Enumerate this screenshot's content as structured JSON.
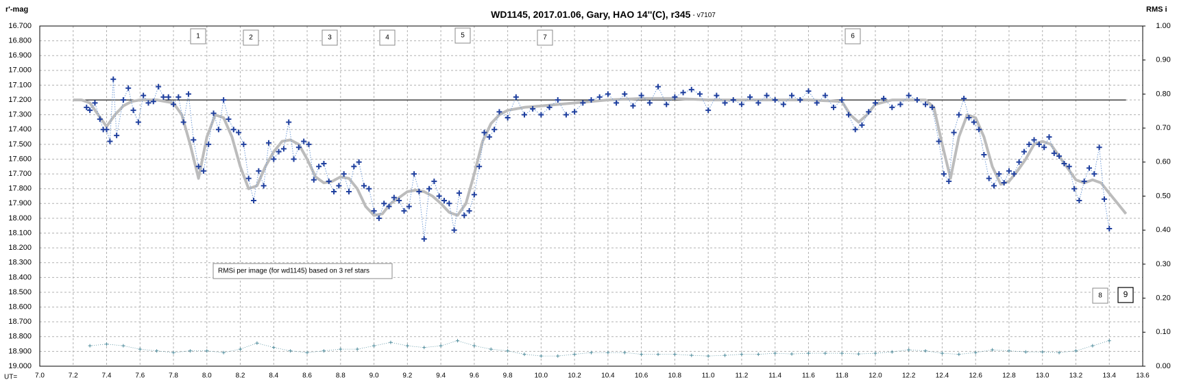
{
  "chart_data": {
    "type": "scatter",
    "title": "WD1145, 2017.01.06,  Gary, HAO 14''(C), r345",
    "subtitle": "- v7107",
    "ylabel": "r'-mag",
    "y2label": "RMS i",
    "xlabel": "UT=",
    "annotations": [
      "1",
      "2",
      "3",
      "4",
      "5",
      "7",
      "6",
      "8",
      "9",
      "RMSi per image (for wd1145) based on 3 ref stars"
    ],
    "xlim": [
      7.0,
      13.6
    ],
    "xticks": [
      {
        "value": 7,
        "label": "7.0"
      },
      7.2,
      7.4,
      7.6,
      7.8,
      {
        "value": 8,
        "label": "8.0"
      },
      8.2,
      8.4,
      8.6,
      8.8,
      {
        "value": 9,
        "label": "9.0"
      },
      9.2,
      9.4,
      9.6,
      9.8,
      {
        "value": 10,
        "label": "10.0"
      },
      10.2,
      10.4,
      10.6,
      10.8,
      {
        "value": 11,
        "label": "11.0"
      },
      11.2,
      11.4,
      11.6,
      11.8,
      {
        "value": 12,
        "label": "12.0"
      },
      12.2,
      12.4,
      12.6,
      12.8,
      {
        "value": 13,
        "label": "13.0"
      },
      13.2,
      13.4,
      13.6
    ],
    "ylim": [
      19.0,
      16.7
    ],
    "yticks": [
      {
        "value": 16.7,
        "label": "16.700"
      },
      {
        "value": 16.8,
        "label": "16.800"
      },
      {
        "value": 16.9,
        "label": "16.900"
      },
      {
        "value": 17.0,
        "label": "17.000"
      },
      {
        "value": 17.1,
        "label": "17.100"
      },
      {
        "value": 17.2,
        "label": "17.200"
      },
      {
        "value": 17.3,
        "label": "17.300"
      },
      {
        "value": 17.4,
        "label": "17.400"
      },
      {
        "value": 17.5,
        "label": "17.500"
      },
      {
        "value": 17.6,
        "label": "17.600"
      },
      {
        "value": 17.7,
        "label": "17.700"
      },
      {
        "value": 17.8,
        "label": "17.800"
      },
      {
        "value": 17.9,
        "label": "17.900"
      },
      {
        "value": 18.0,
        "label": "18.000"
      },
      {
        "value": 18.1,
        "label": "18.100"
      },
      {
        "value": 18.2,
        "label": "18.200"
      },
      {
        "value": 18.3,
        "label": "18.300"
      },
      {
        "value": 18.4,
        "label": "18.400"
      },
      {
        "value": 18.5,
        "label": "18.500"
      },
      {
        "value": 18.6,
        "label": "18.600"
      },
      {
        "value": 18.7,
        "label": "18.700"
      },
      {
        "value": 18.8,
        "label": "18.800"
      },
      {
        "value": 18.9,
        "label": "18.900"
      },
      {
        "value": 19.0,
        "label": "19.000"
      }
    ],
    "y2lim": [
      0,
      1
    ],
    "y2ticks": [
      {
        "value": 0,
        "label": "0.00"
      },
      {
        "value": 0.1,
        "label": "0.10"
      },
      {
        "value": 0.2,
        "label": "0.20"
      },
      {
        "value": 0.3,
        "label": "0.30"
      },
      {
        "value": 0.4,
        "label": "0.40"
      },
      {
        "value": 0.5,
        "label": "0.50"
      },
      {
        "value": 0.6,
        "label": "0.60"
      },
      {
        "value": 0.7,
        "label": "0.70"
      },
      {
        "value": 0.8,
        "label": "0.80"
      },
      {
        "value": 0.9,
        "label": "0.90"
      },
      {
        "value": 1,
        "label": "1.00"
      }
    ],
    "grid": true,
    "reference_line": {
      "y": 17.2,
      "x": [
        7.2,
        13.5
      ],
      "color": "#000000"
    },
    "series": [
      {
        "style": "markers",
        "color": "#1f3f9e",
        "connector_color": "#6f9ad6",
        "x": [
          7.28,
          7.3,
          7.33,
          7.36,
          7.38,
          7.4,
          7.42,
          7.44,
          7.46,
          7.5,
          7.53,
          7.56,
          7.59,
          7.62,
          7.65,
          7.68,
          7.71,
          7.74,
          7.77,
          7.8,
          7.83,
          7.86,
          7.89,
          7.92,
          7.95,
          7.98,
          8.01,
          8.04,
          8.07,
          8.1,
          8.13,
          8.16,
          8.19,
          8.22,
          8.25,
          8.28,
          8.31,
          8.34,
          8.37,
          8.4,
          8.43,
          8.46,
          8.49,
          8.52,
          8.55,
          8.58,
          8.61,
          8.64,
          8.67,
          8.7,
          8.73,
          8.76,
          8.79,
          8.82,
          8.85,
          8.88,
          8.91,
          8.94,
          8.97,
          9.0,
          9.03,
          9.06,
          9.09,
          9.12,
          9.15,
          9.18,
          9.21,
          9.24,
          9.27,
          9.3,
          9.33,
          9.36,
          9.39,
          9.42,
          9.45,
          9.48,
          9.51,
          9.54,
          9.57,
          9.6,
          9.63,
          9.66,
          9.69,
          9.72,
          9.75,
          9.8,
          9.85,
          9.9,
          9.95,
          10.0,
          10.05,
          10.1,
          10.15,
          10.2,
          10.25,
          10.3,
          10.35,
          10.4,
          10.45,
          10.5,
          10.55,
          10.6,
          10.65,
          10.7,
          10.75,
          10.8,
          10.85,
          10.9,
          10.95,
          11.0,
          11.05,
          11.1,
          11.15,
          11.2,
          11.25,
          11.3,
          11.35,
          11.4,
          11.45,
          11.5,
          11.55,
          11.6,
          11.65,
          11.7,
          11.75,
          11.8,
          11.84,
          11.88,
          11.92,
          11.96,
          12.0,
          12.05,
          12.1,
          12.15,
          12.2,
          12.25,
          12.3,
          12.34,
          12.38,
          12.41,
          12.44,
          12.47,
          12.5,
          12.53,
          12.56,
          12.59,
          12.62,
          12.65,
          12.68,
          12.71,
          12.74,
          12.77,
          12.8,
          12.83,
          12.86,
          12.89,
          12.92,
          12.95,
          12.98,
          13.01,
          13.04,
          13.07,
          13.1,
          13.13,
          13.16,
          13.19,
          13.22,
          13.25,
          13.28,
          13.31,
          13.34,
          13.37,
          13.4
        ],
        "values": [
          17.25,
          17.27,
          17.22,
          17.33,
          17.4,
          17.4,
          17.48,
          17.06,
          17.44,
          17.2,
          17.12,
          17.27,
          17.35,
          17.17,
          17.22,
          17.21,
          17.11,
          17.18,
          17.18,
          17.23,
          17.18,
          17.35,
          17.16,
          17.47,
          17.65,
          17.68,
          17.5,
          17.29,
          17.4,
          17.2,
          17.33,
          17.4,
          17.42,
          17.5,
          17.73,
          17.88,
          17.68,
          17.78,
          17.49,
          17.6,
          17.55,
          17.53,
          17.35,
          17.6,
          17.52,
          17.48,
          17.5,
          17.74,
          17.65,
          17.63,
          17.75,
          17.82,
          17.78,
          17.7,
          17.82,
          17.65,
          17.62,
          17.78,
          17.8,
          17.95,
          18.0,
          17.9,
          17.92,
          17.86,
          17.88,
          17.95,
          17.92,
          17.7,
          17.82,
          18.14,
          17.8,
          17.75,
          17.85,
          17.88,
          17.9,
          18.08,
          17.83,
          17.98,
          17.95,
          17.84,
          17.65,
          17.42,
          17.45,
          17.4,
          17.28,
          17.32,
          17.18,
          17.3,
          17.26,
          17.3,
          17.25,
          17.2,
          17.3,
          17.28,
          17.22,
          17.2,
          17.18,
          17.16,
          17.22,
          17.16,
          17.24,
          17.17,
          17.22,
          17.11,
          17.23,
          17.18,
          17.15,
          17.13,
          17.16,
          17.27,
          17.17,
          17.22,
          17.2,
          17.23,
          17.18,
          17.22,
          17.17,
          17.2,
          17.23,
          17.17,
          17.2,
          17.14,
          17.22,
          17.17,
          17.25,
          17.2,
          17.3,
          17.4,
          17.37,
          17.28,
          17.22,
          17.19,
          17.25,
          17.23,
          17.17,
          17.2,
          17.23,
          17.25,
          17.48,
          17.7,
          17.75,
          17.42,
          17.3,
          17.19,
          17.32,
          17.35,
          17.4,
          17.57,
          17.73,
          17.78,
          17.7,
          17.76,
          17.68,
          17.7,
          17.62,
          17.55,
          17.5,
          17.47,
          17.5,
          17.52,
          17.45,
          17.56,
          17.58,
          17.63,
          17.65,
          17.8,
          17.88,
          17.75,
          17.66,
          17.7,
          17.52,
          17.87,
          18.07
        ]
      },
      {
        "style": "line",
        "color": "#bcbcbc",
        "x": [
          7.2,
          7.25,
          7.3,
          7.35,
          7.4,
          7.45,
          7.5,
          7.55,
          7.6,
          7.7,
          7.8,
          7.85,
          7.9,
          7.95,
          8.0,
          8.05,
          8.1,
          8.15,
          8.2,
          8.25,
          8.3,
          8.35,
          8.4,
          8.45,
          8.5,
          8.55,
          8.6,
          8.65,
          8.7,
          8.75,
          8.8,
          8.85,
          8.9,
          8.95,
          9.0,
          9.05,
          9.1,
          9.15,
          9.2,
          9.25,
          9.3,
          9.35,
          9.4,
          9.45,
          9.5,
          9.55,
          9.6,
          9.65,
          9.7,
          9.75,
          9.8,
          9.9,
          10.0,
          10.2,
          10.4,
          10.6,
          10.8,
          11.0,
          11.2,
          11.4,
          11.6,
          11.8,
          11.85,
          11.9,
          11.95,
          12.0,
          12.1,
          12.2,
          12.3,
          12.35,
          12.4,
          12.45,
          12.5,
          12.55,
          12.6,
          12.65,
          12.7,
          12.75,
          12.8,
          12.85,
          12.9,
          12.95,
          13.0,
          13.05,
          13.1,
          13.15,
          13.2,
          13.25,
          13.3,
          13.35,
          13.4,
          13.45,
          13.5
        ],
        "values": [
          17.2,
          17.2,
          17.22,
          17.3,
          17.38,
          17.3,
          17.24,
          17.21,
          17.2,
          17.2,
          17.22,
          17.3,
          17.5,
          17.73,
          17.45,
          17.3,
          17.32,
          17.45,
          17.65,
          17.8,
          17.78,
          17.65,
          17.55,
          17.48,
          17.47,
          17.5,
          17.6,
          17.72,
          17.76,
          17.75,
          17.72,
          17.73,
          17.8,
          17.92,
          17.98,
          17.97,
          17.9,
          17.86,
          17.82,
          17.81,
          17.82,
          17.85,
          17.9,
          17.96,
          17.98,
          17.9,
          17.7,
          17.48,
          17.36,
          17.3,
          17.27,
          17.25,
          17.24,
          17.22,
          17.2,
          17.19,
          17.19,
          17.2,
          17.2,
          17.2,
          17.2,
          17.21,
          17.3,
          17.35,
          17.3,
          17.23,
          17.2,
          17.2,
          17.2,
          17.25,
          17.5,
          17.73,
          17.45,
          17.3,
          17.32,
          17.45,
          17.65,
          17.77,
          17.75,
          17.68,
          17.6,
          17.5,
          17.48,
          17.5,
          17.58,
          17.66,
          17.74,
          17.76,
          17.74,
          17.76,
          17.83,
          17.9,
          17.97
        ]
      },
      {
        "style": "markers-small",
        "axis": "y2",
        "color": "#4f8c9c",
        "x": [
          7.3,
          7.4,
          7.5,
          7.6,
          7.7,
          7.8,
          7.9,
          8.0,
          8.1,
          8.2,
          8.3,
          8.4,
          8.5,
          8.6,
          8.7,
          8.8,
          8.9,
          9.0,
          9.1,
          9.2,
          9.3,
          9.4,
          9.5,
          9.6,
          9.7,
          9.8,
          9.9,
          10.0,
          10.1,
          10.2,
          10.3,
          10.4,
          10.5,
          10.6,
          10.7,
          10.8,
          10.9,
          11.0,
          11.1,
          11.2,
          11.3,
          11.4,
          11.5,
          11.6,
          11.7,
          11.8,
          11.9,
          12.0,
          12.1,
          12.2,
          12.3,
          12.4,
          12.5,
          12.6,
          12.7,
          12.8,
          12.9,
          13.0,
          13.1,
          13.2,
          13.3,
          13.4
        ],
        "values": [
          0.06,
          0.065,
          0.06,
          0.05,
          0.045,
          0.04,
          0.045,
          0.045,
          0.04,
          0.05,
          0.068,
          0.055,
          0.045,
          0.04,
          0.045,
          0.05,
          0.05,
          0.06,
          0.07,
          0.06,
          0.055,
          0.06,
          0.075,
          0.06,
          0.05,
          0.045,
          0.035,
          0.03,
          0.03,
          0.035,
          0.04,
          0.04,
          0.04,
          0.035,
          0.035,
          0.035,
          0.032,
          0.03,
          0.032,
          0.035,
          0.035,
          0.038,
          0.036,
          0.038,
          0.038,
          0.038,
          0.036,
          0.038,
          0.042,
          0.048,
          0.045,
          0.038,
          0.035,
          0.04,
          0.048,
          0.045,
          0.042,
          0.042,
          0.04,
          0.045,
          0.06,
          0.075
        ]
      }
    ]
  }
}
